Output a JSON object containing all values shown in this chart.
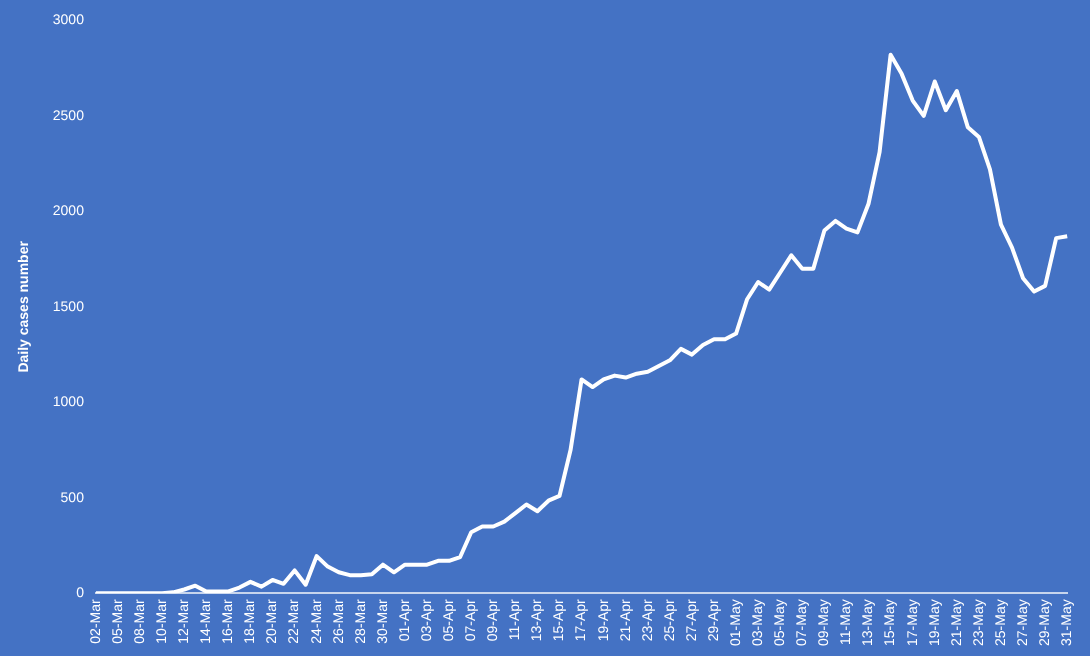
{
  "chart_data": {
    "type": "line",
    "ylabel": "Daily cases number",
    "categories": [
      "02-Mar",
      null,
      "05-Mar",
      null,
      "08-Mar",
      null,
      "10-Mar",
      null,
      "12-Mar",
      null,
      "14-Mar",
      null,
      "16-Mar",
      null,
      "18-Mar",
      null,
      "20-Mar",
      null,
      "22-Mar",
      null,
      "24-Mar",
      null,
      "26-Mar",
      null,
      "28-Mar",
      null,
      "30-Mar",
      null,
      "01-Apr",
      null,
      "03-Apr",
      null,
      "05-Apr",
      null,
      "07-Apr",
      null,
      "09-Apr",
      null,
      "11-Apr",
      null,
      "13-Apr",
      null,
      "15-Apr",
      null,
      "17-Apr",
      null,
      "19-Apr",
      null,
      "21-Apr",
      null,
      "23-Apr",
      null,
      "25-Apr",
      null,
      "27-Apr",
      null,
      "29-Apr",
      null,
      "01-May",
      null,
      "03-May",
      null,
      "05-May",
      null,
      "07-May",
      null,
      "09-May",
      null,
      "11-May",
      null,
      "13-May",
      null,
      "15-May",
      null,
      "17-May",
      null,
      "19-May",
      null,
      "21-May",
      null,
      "23-May",
      null,
      "25-May",
      null,
      "27-May",
      null,
      "29-May",
      null,
      "31-May"
    ],
    "series": [
      {
        "color": "#ffffff",
        "values": [
          0,
          0,
          0,
          0,
          0,
          0,
          0,
          5,
          20,
          40,
          10,
          10,
          10,
          30,
          60,
          35,
          70,
          50,
          120,
          45,
          195,
          140,
          110,
          95,
          95,
          100,
          150,
          110,
          150,
          150,
          150,
          170,
          170,
          190,
          320,
          350,
          350,
          375,
          420,
          465,
          430,
          485,
          510,
          750,
          1120,
          1080,
          1120,
          1140,
          1130,
          1150,
          1160,
          1190,
          1220,
          1280,
          1250,
          1300,
          1330,
          1330,
          1360,
          1540,
          1630,
          1590,
          1680,
          1770,
          1700,
          1700,
          1900,
          1950,
          1910,
          1890,
          2040,
          2310,
          2820,
          2720,
          2580,
          2500,
          2680,
          2530,
          2630,
          2440,
          2390,
          2220,
          1930,
          1810,
          1650,
          1580,
          1610,
          1860,
          1870
        ]
      }
    ],
    "ylim": [
      0,
      3000
    ],
    "yticks": [
      0,
      500,
      1000,
      1500,
      2000,
      2500,
      3000
    ],
    "grid": false,
    "legend": false,
    "marker": "none",
    "line_style": "solid"
  }
}
